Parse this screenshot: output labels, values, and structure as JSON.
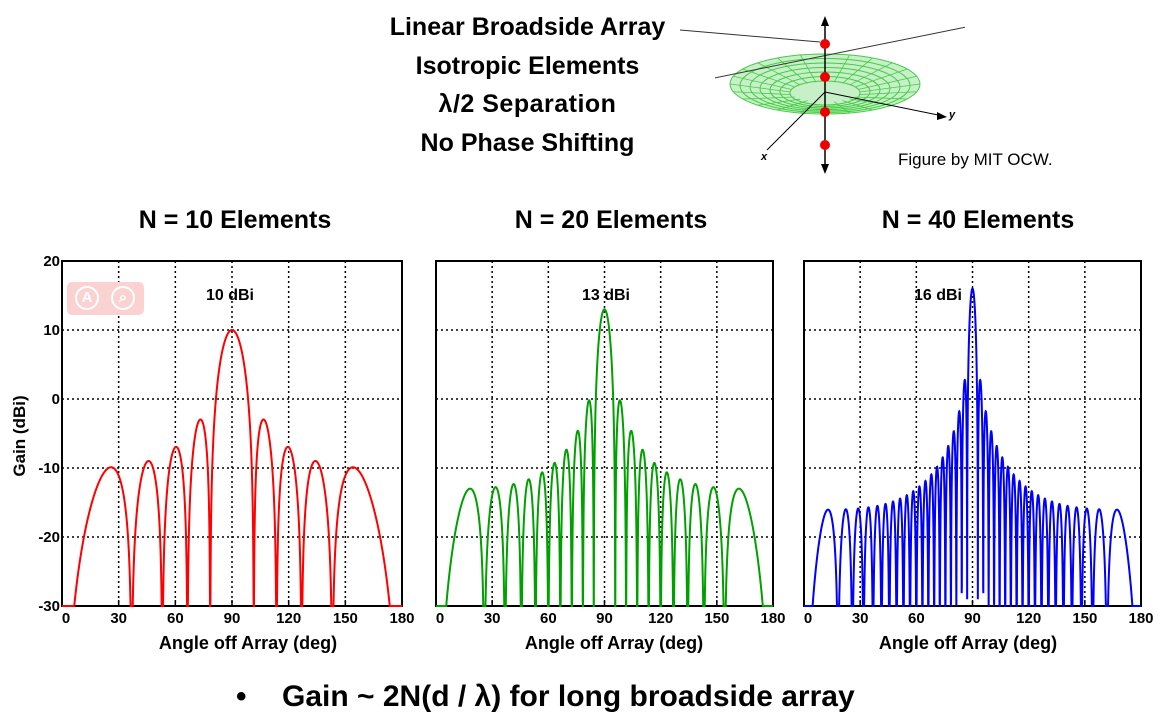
{
  "header": {
    "lines": [
      "Linear Broadside Array",
      "Isotropic Elements",
      "λ/2 Separation",
      "No Phase Shifting"
    ],
    "credit": "Figure by MIT OCW.",
    "axis_x": "x",
    "axis_y": "y"
  },
  "footer": {
    "bullet": "•",
    "text": "Gain ~ 2N(d / λ) for long broadside array"
  },
  "colors": {
    "n10": "#ff0000",
    "n20": "#00a000",
    "n40": "#0000ff",
    "torus": "#44cc44",
    "dots": "#ff0000"
  },
  "chart_data": [
    {
      "type": "line",
      "title": "N = 10 Elements",
      "xlabel": "Angle off Array (deg)",
      "ylabel": "Gain (dBi)",
      "xlim": [
        0,
        180
      ],
      "ylim": [
        -30,
        20
      ],
      "xticks": [
        "0",
        "30",
        "60",
        "90",
        "120",
        "150",
        "180"
      ],
      "yticks": [
        "-30",
        "-20",
        "-10",
        "0",
        "10",
        "20"
      ],
      "grid": true,
      "annotation": "10 dBi",
      "series": [
        {
          "N": 10,
          "peak_dbi": 10
        }
      ]
    },
    {
      "type": "line",
      "title": "N = 20 Elements",
      "xlabel": "Angle off Array (deg)",
      "xlim": [
        0,
        180
      ],
      "ylim": [
        -30,
        20
      ],
      "xticks": [
        "0",
        "30",
        "60",
        "90",
        "120",
        "150",
        "180"
      ],
      "grid": true,
      "annotation": "13 dBi",
      "series": [
        {
          "N": 20,
          "peak_dbi": 13
        }
      ]
    },
    {
      "type": "line",
      "title": "N = 40 Elements",
      "xlabel": "Angle off Array (deg)",
      "xlim": [
        0,
        180
      ],
      "ylim": [
        -30,
        20
      ],
      "xticks": [
        "0",
        "30",
        "60",
        "90",
        "120",
        "150",
        "180"
      ],
      "grid": true,
      "annotation": "16 dBi",
      "series": [
        {
          "N": 40,
          "peak_dbi": 16
        }
      ]
    }
  ]
}
